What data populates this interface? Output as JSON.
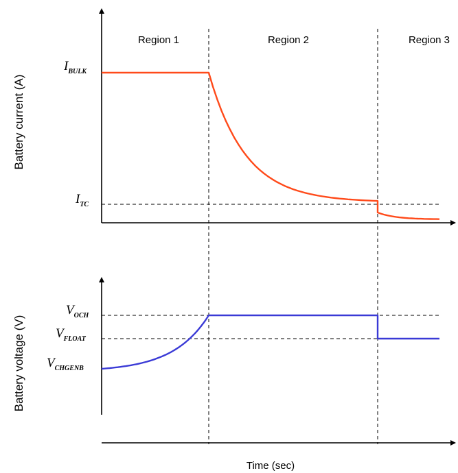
{
  "chart_data": [
    {
      "type": "line",
      "ylabel": "Battery current (A)",
      "regions": [
        "Region 1",
        "Region 2",
        "Region 3"
      ],
      "y_ticks": [
        {
          "symbol": "I",
          "subscript": "BULK"
        },
        {
          "symbol": "I",
          "subscript": "TC"
        }
      ],
      "series": [
        {
          "color": "#ff4a1a",
          "segments": [
            {
              "region": "Region 1",
              "shape": "constant",
              "level": "I_BULK"
            },
            {
              "region": "Region 2",
              "shape": "exponential decay",
              "from": "I_BULK",
              "to": "I_TC"
            },
            {
              "region": "Region 3",
              "shape": "step drop then decay",
              "from": "I_TC",
              "to": "near 0"
            }
          ]
        }
      ]
    },
    {
      "type": "line",
      "ylabel": "Battery voltage (V)",
      "xlabel": "Time (sec)",
      "y_ticks": [
        {
          "symbol": "V",
          "subscript": "OCH"
        },
        {
          "symbol": "V",
          "subscript": "FLOAT"
        },
        {
          "symbol": "V",
          "subscript": "CHGENB"
        }
      ],
      "series": [
        {
          "color": "#3a3ad6",
          "segments": [
            {
              "region": "Region 1",
              "shape": "exponential rise",
              "from": "V_CHGENB",
              "to": "V_OCH"
            },
            {
              "region": "Region 2",
              "shape": "constant",
              "level": "V_OCH"
            },
            {
              "region": "Region 3",
              "shape": "step drop then constant",
              "level": "V_FLOAT"
            }
          ]
        }
      ]
    }
  ]
}
